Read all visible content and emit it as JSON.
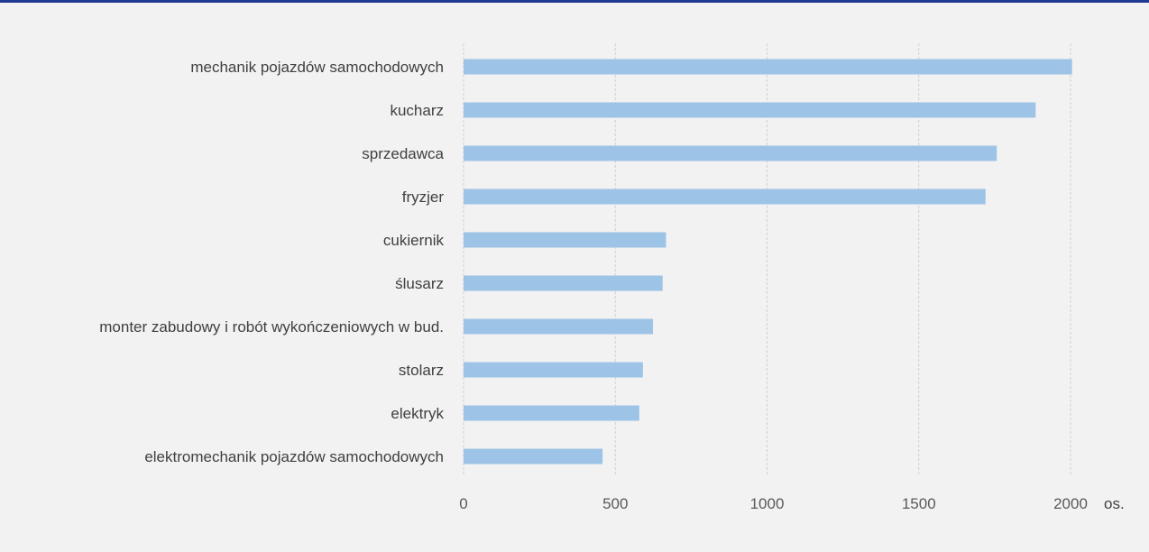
{
  "chart_data": {
    "type": "bar",
    "orientation": "horizontal",
    "categories": [
      "mechanik pojazdów samochodowych",
      "kucharz",
      "sprzedawca",
      "fryzjer",
      "cukiernik",
      "ślusarz",
      "monter zabudowy i robót wykończeniowych w bud.",
      "stolarz",
      "elektryk",
      "elektromechanik pojazdów samochodowych"
    ],
    "values": [
      2005,
      1885,
      1757,
      1720,
      667,
      656,
      624,
      591,
      579,
      458
    ],
    "xlim": [
      0,
      2000
    ],
    "xticks": [
      "0",
      "500",
      "1000",
      "1500",
      "2000"
    ],
    "unit": "os.",
    "grid": "vertical dashed",
    "colors": {
      "bar": "#9dc3e6",
      "grid": "#d0d0d0",
      "accent": "#1f3a93"
    }
  }
}
